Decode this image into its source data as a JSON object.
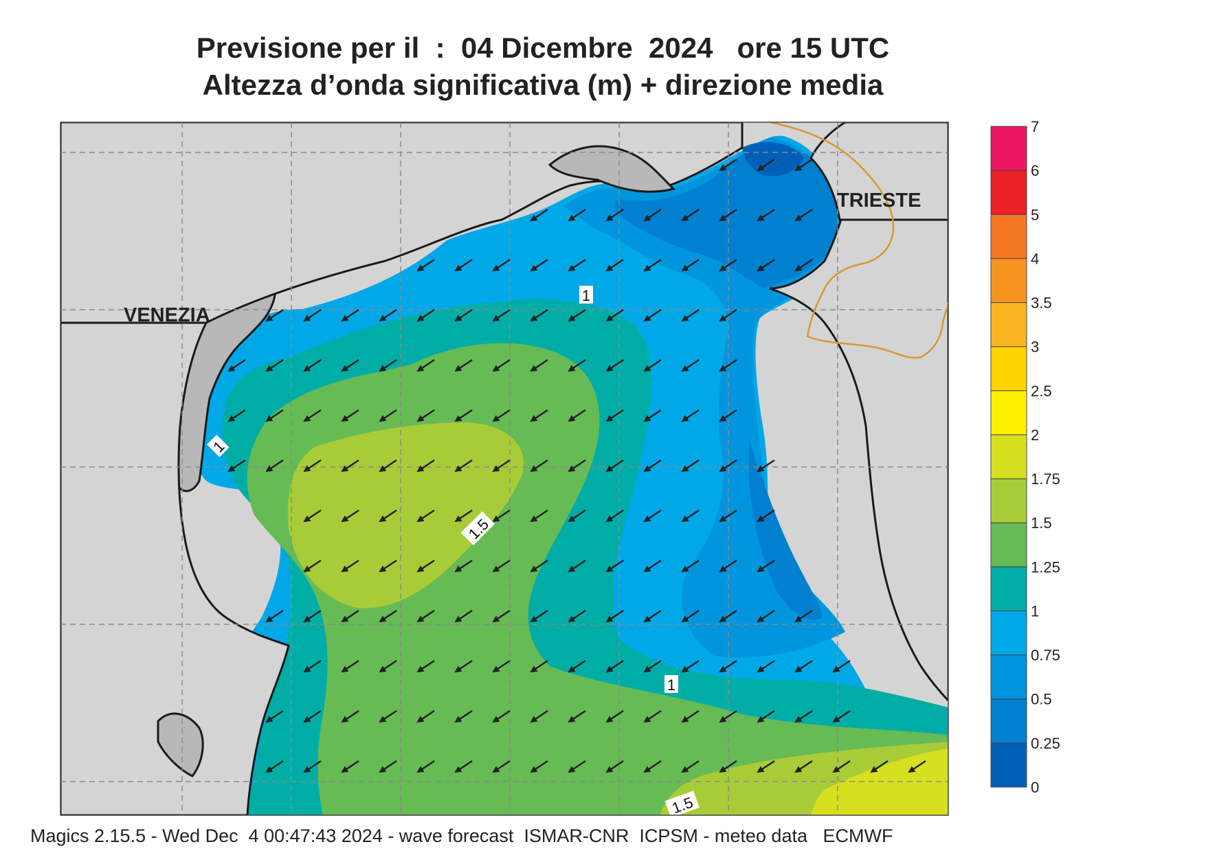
{
  "header": {
    "title_line1": "Previsione per il  :  04 Dicembre  2024   ore 15 UTC",
    "title_line2": "Altezza d’onda significativa (m) + direzione media"
  },
  "map": {
    "cities": [
      {
        "name": "VENEZIA"
      },
      {
        "name": "TRIESTE"
      }
    ],
    "contour_labels": [
      "1",
      "1",
      "1.5",
      "1",
      "1.5"
    ],
    "arrow_direction": "south-west",
    "land_color": "#d4d4d4",
    "border_color": "#d59a30",
    "coastline_color": "#1a1a1a"
  },
  "legend": {
    "levels": [
      "0",
      "0.25",
      "0.5",
      "0.75",
      "1",
      "1.25",
      "1.5",
      "1.75",
      "2",
      "2.5",
      "3",
      "3.5",
      "4",
      "5",
      "6",
      "7"
    ],
    "colors": [
      "#0060b8",
      "#0080cf",
      "#0095dd",
      "#00a8e8",
      "#00ada6",
      "#66bb55",
      "#a8cc38",
      "#d7e01e",
      "#fff200",
      "#ffd400",
      "#fbb520",
      "#f79421",
      "#f57825",
      "#ec2128",
      "#ed1565"
    ]
  },
  "footer": {
    "credit": "Magics 2.15.5 - Wed Dec  4 00:47:43 2024 - wave forecast  ISMAR-CNR  ICPSM - meteo data   ECMWF"
  }
}
